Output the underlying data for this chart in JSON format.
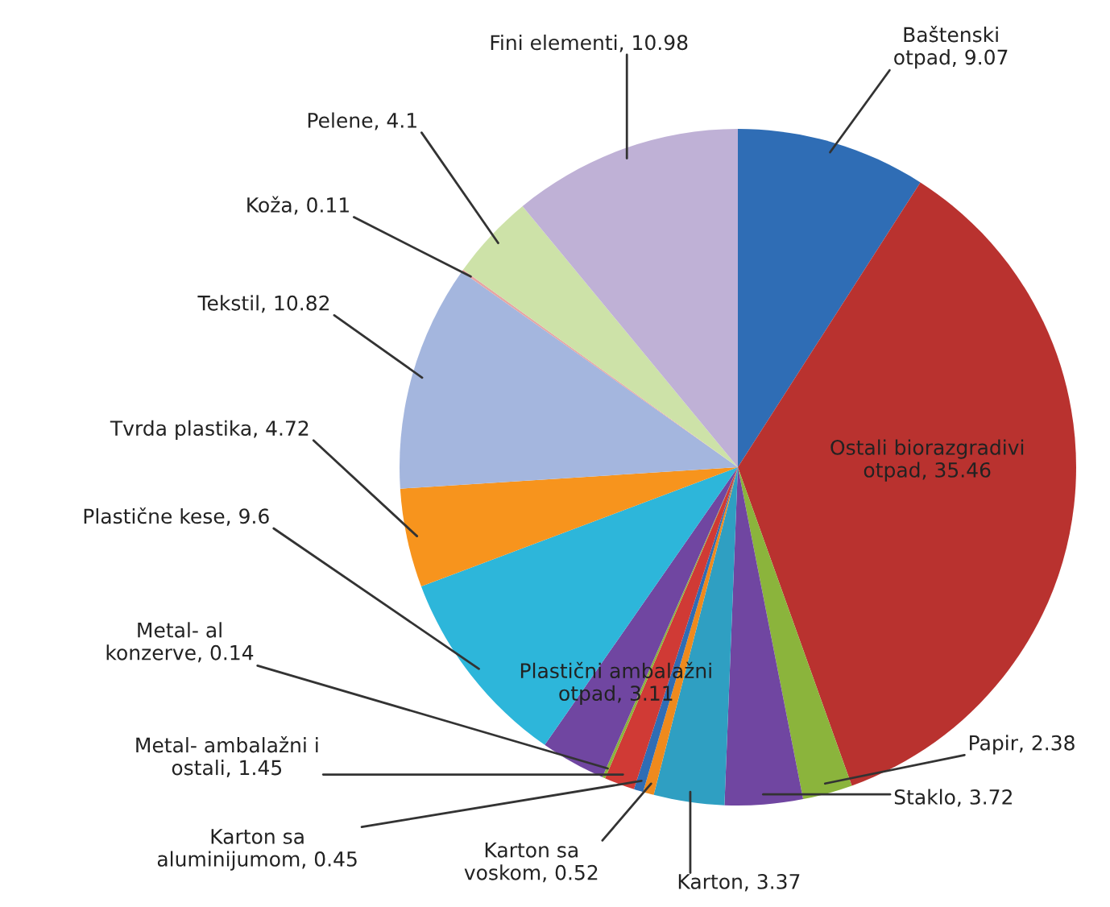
{
  "chart_data": {
    "type": "pie",
    "categories": [
      "Baštenski otpad, 9.07",
      "Ostali biorazgradivi otpad, 35.46",
      "Papir, 2.38",
      "Staklo, 3.72",
      "Karton, 3.37",
      "Karton sa voskom, 0.52",
      "Karton sa aluminijumom, 0.45",
      "Metal- ambalažni i ostali, 1.45",
      "Metal- al konzerve, 0.14",
      "Plastični ambalažni otpad, 3.11",
      "Plastične kese, 9.6",
      "Tvrda plastika, 4.72",
      "Tekstil, 10.82",
      "Koža, 0.11",
      "Pelene, 4.1",
      "Fini elementi, 10.98"
    ],
    "values": [
      9.07,
      35.46,
      2.38,
      3.72,
      3.37,
      0.52,
      0.45,
      1.45,
      0.14,
      3.11,
      9.6,
      4.72,
      10.82,
      0.11,
      4.1,
      10.98
    ],
    "colors": [
      "#2f6db5",
      "#b9322f",
      "#8bb43c",
      "#7046a1",
      "#2f9fc2",
      "#ef8a1d",
      "#2f6db5",
      "#d03a35",
      "#8bb43c",
      "#7046a1",
      "#2db6da",
      "#f7941d",
      "#a4b6de",
      "#e6a5a3",
      "#cde2a8",
      "#bfb1d6"
    ]
  }
}
